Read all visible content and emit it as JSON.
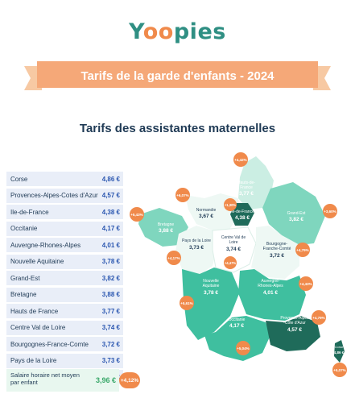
{
  "logo": {
    "part1": "Y",
    "part2": "oo",
    "part3": "pies"
  },
  "header": {
    "title": "Tarifs de la garde d'enfants - 2024"
  },
  "subtitle": "Tarifs des assistantes maternelles",
  "regions": [
    {
      "name": "Corse",
      "value": "4,86 €"
    },
    {
      "name": "Provences-Alpes-Cotes d'Azur",
      "value": "4,57 €"
    },
    {
      "name": "Ile-de-France",
      "value": "4,38 €"
    },
    {
      "name": "Occitanie",
      "value": "4,17 €"
    },
    {
      "name": "Auvergne-Rhones-Alpes",
      "value": "4,01 €"
    },
    {
      "name": "Nouvelle Aquitaine",
      "value": "3,78 €"
    },
    {
      "name": "Grand-Est",
      "value": "3,82 €"
    },
    {
      "name": "Bretagne",
      "value": "3,88 €"
    },
    {
      "name": "Hauts de France",
      "value": "3,77 €"
    },
    {
      "name": "Centre Val de Loire",
      "value": "3,74 €"
    },
    {
      "name": "Bourgognes-France-Comte",
      "value": "3,72 €"
    },
    {
      "name": "Pays de la Loire",
      "value": "3,73 €"
    },
    {
      "name": "Normandie",
      "value": "3,67 €"
    }
  ],
  "average": {
    "label": "Salaire horaire net moyen par enfant",
    "value": "3,96 €",
    "change": "+4,12%"
  },
  "map": {
    "labels": {
      "hdf": {
        "name1": "Hauts-de-",
        "name2": "France",
        "value": "3,77 €"
      },
      "normandie": {
        "name1": "Normandie",
        "value": "3,67 €"
      },
      "idf": {
        "name1": "Ile-de-France",
        "value": "4,38 €"
      },
      "grandest": {
        "name1": "Grand-Est",
        "value": "3,82 €"
      },
      "bretagne": {
        "name1": "Bretagne",
        "value": "3,88 €"
      },
      "pdl": {
        "name1": "Pays de la Loire",
        "value": "3,73 €"
      },
      "cvl": {
        "name1": "Centre Val de",
        "name2": "Loire",
        "value": "3,74 €"
      },
      "bfc": {
        "name1": "Bourgogne-",
        "name2": "Franche-Comté",
        "value": "3,72 €"
      },
      "na": {
        "name1": "Nouvelle",
        "name2": "Aquitaine",
        "value": "3,78 €"
      },
      "ara": {
        "name1": "Auvergne-",
        "name2": "Rhones-Alpes",
        "value": "4,01 €"
      },
      "occ": {
        "name1": "Occitanie",
        "value": "4,17 €"
      },
      "paca": {
        "name1": "Provence-Alpes",
        "name2": "-Côte d'Azur",
        "value": "4,57 €"
      },
      "corse": {
        "name1": "Corse",
        "value": "4,86 €"
      }
    },
    "badges": {
      "hdf": "+4,42%",
      "normandie": "+6,07%",
      "bretagne": "+5,43%",
      "idf": "+1,30%",
      "grandest": "+3,60%",
      "pdl": "+4,17%",
      "cvl": "+4,47%",
      "bfc": "+4,79%",
      "na": "+5,61%",
      "ara": "+4,43%",
      "paca": "+4,79%",
      "occ": "+5,04%",
      "corse": "+5,07%"
    }
  }
}
